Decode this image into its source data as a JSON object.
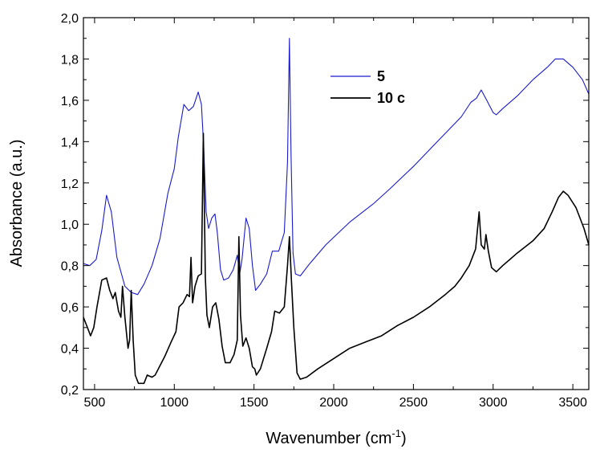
{
  "chart_data": {
    "type": "line",
    "title": "",
    "xlabel": "Wavenumber (cm",
    "xlabel_sup": "-1",
    "xlabel_close": ")",
    "ylabel": "Absorbance (a.u.)",
    "xlim": [
      430,
      3600
    ],
    "ylim": [
      0.2,
      2.0
    ],
    "x_ticks": [
      500,
      1000,
      1500,
      2000,
      2500,
      3000,
      3500
    ],
    "x_tick_labels": [
      "500",
      "1000",
      "1500",
      "2000",
      "2500",
      "3000",
      "3500"
    ],
    "y_ticks": [
      0.2,
      0.4,
      0.6,
      0.8,
      1.0,
      1.2,
      1.4,
      1.6,
      1.8,
      2.0
    ],
    "y_tick_labels": [
      "0,2",
      "0,4",
      "0,6",
      "0,8",
      "1,0",
      "1,2",
      "1,4",
      "1,6",
      "1,8",
      "2,0"
    ],
    "grid": false,
    "legend_position": "top-center",
    "series": [
      {
        "name": "5",
        "color": "#1a1acc",
        "points": [
          [
            430,
            0.81
          ],
          [
            470,
            0.8
          ],
          [
            510,
            0.83
          ],
          [
            545,
            0.97
          ],
          [
            575,
            1.14
          ],
          [
            605,
            1.06
          ],
          [
            640,
            0.84
          ],
          [
            690,
            0.7
          ],
          [
            730,
            0.67
          ],
          [
            770,
            0.66
          ],
          [
            810,
            0.71
          ],
          [
            860,
            0.8
          ],
          [
            910,
            0.93
          ],
          [
            960,
            1.15
          ],
          [
            1000,
            1.27
          ],
          [
            1025,
            1.42
          ],
          [
            1060,
            1.58
          ],
          [
            1090,
            1.55
          ],
          [
            1120,
            1.57
          ],
          [
            1150,
            1.64
          ],
          [
            1170,
            1.58
          ],
          [
            1185,
            1.37
          ],
          [
            1200,
            1.06
          ],
          [
            1215,
            0.98
          ],
          [
            1235,
            1.03
          ],
          [
            1255,
            1.05
          ],
          [
            1270,
            0.96
          ],
          [
            1290,
            0.78
          ],
          [
            1310,
            0.73
          ],
          [
            1340,
            0.74
          ],
          [
            1370,
            0.78
          ],
          [
            1395,
            0.85
          ],
          [
            1410,
            0.76
          ],
          [
            1425,
            0.83
          ],
          [
            1450,
            1.03
          ],
          [
            1470,
            0.98
          ],
          [
            1490,
            0.8
          ],
          [
            1510,
            0.68
          ],
          [
            1540,
            0.71
          ],
          [
            1580,
            0.76
          ],
          [
            1615,
            0.87
          ],
          [
            1655,
            0.87
          ],
          [
            1690,
            0.96
          ],
          [
            1710,
            1.3
          ],
          [
            1722,
            1.9
          ],
          [
            1732,
            1.34
          ],
          [
            1745,
            0.86
          ],
          [
            1760,
            0.76
          ],
          [
            1790,
            0.75
          ],
          [
            1850,
            0.81
          ],
          [
            1950,
            0.9
          ],
          [
            2100,
            1.01
          ],
          [
            2250,
            1.1
          ],
          [
            2350,
            1.17
          ],
          [
            2500,
            1.28
          ],
          [
            2650,
            1.4
          ],
          [
            2800,
            1.52
          ],
          [
            2860,
            1.59
          ],
          [
            2895,
            1.61
          ],
          [
            2925,
            1.65
          ],
          [
            2960,
            1.6
          ],
          [
            3000,
            1.54
          ],
          [
            3020,
            1.53
          ],
          [
            3060,
            1.56
          ],
          [
            3150,
            1.62
          ],
          [
            3250,
            1.7
          ],
          [
            3340,
            1.76
          ],
          [
            3390,
            1.8
          ],
          [
            3440,
            1.8
          ],
          [
            3500,
            1.76
          ],
          [
            3560,
            1.7
          ],
          [
            3600,
            1.63
          ]
        ]
      },
      {
        "name": "10 c",
        "color": "#000000",
        "points": [
          [
            430,
            0.55
          ],
          [
            455,
            0.5
          ],
          [
            475,
            0.46
          ],
          [
            495,
            0.5
          ],
          [
            515,
            0.6
          ],
          [
            545,
            0.73
          ],
          [
            575,
            0.74
          ],
          [
            595,
            0.68
          ],
          [
            615,
            0.64
          ],
          [
            630,
            0.67
          ],
          [
            650,
            0.58
          ],
          [
            665,
            0.55
          ],
          [
            675,
            0.7
          ],
          [
            690,
            0.55
          ],
          [
            710,
            0.4
          ],
          [
            720,
            0.44
          ],
          [
            730,
            0.68
          ],
          [
            742,
            0.44
          ],
          [
            755,
            0.27
          ],
          [
            775,
            0.23
          ],
          [
            810,
            0.23
          ],
          [
            830,
            0.27
          ],
          [
            860,
            0.26
          ],
          [
            880,
            0.27
          ],
          [
            900,
            0.3
          ],
          [
            940,
            0.36
          ],
          [
            980,
            0.43
          ],
          [
            1010,
            0.48
          ],
          [
            1030,
            0.6
          ],
          [
            1055,
            0.62
          ],
          [
            1080,
            0.66
          ],
          [
            1095,
            0.65
          ],
          [
            1105,
            0.84
          ],
          [
            1115,
            0.62
          ],
          [
            1130,
            0.7
          ],
          [
            1150,
            0.75
          ],
          [
            1170,
            0.76
          ],
          [
            1182,
            1.44
          ],
          [
            1195,
            0.74
          ],
          [
            1205,
            0.56
          ],
          [
            1220,
            0.5
          ],
          [
            1240,
            0.6
          ],
          [
            1260,
            0.62
          ],
          [
            1280,
            0.54
          ],
          [
            1300,
            0.41
          ],
          [
            1320,
            0.33
          ],
          [
            1350,
            0.33
          ],
          [
            1375,
            0.37
          ],
          [
            1395,
            0.44
          ],
          [
            1405,
            0.94
          ],
          [
            1415,
            0.56
          ],
          [
            1430,
            0.41
          ],
          [
            1450,
            0.45
          ],
          [
            1470,
            0.4
          ],
          [
            1490,
            0.31
          ],
          [
            1505,
            0.3
          ],
          [
            1515,
            0.27
          ],
          [
            1540,
            0.3
          ],
          [
            1580,
            0.4
          ],
          [
            1610,
            0.48
          ],
          [
            1630,
            0.58
          ],
          [
            1660,
            0.57
          ],
          [
            1690,
            0.6
          ],
          [
            1710,
            0.8
          ],
          [
            1722,
            0.94
          ],
          [
            1735,
            0.72
          ],
          [
            1750,
            0.5
          ],
          [
            1770,
            0.28
          ],
          [
            1790,
            0.25
          ],
          [
            1830,
            0.26
          ],
          [
            1900,
            0.3
          ],
          [
            2000,
            0.35
          ],
          [
            2100,
            0.4
          ],
          [
            2200,
            0.43
          ],
          [
            2300,
            0.46
          ],
          [
            2400,
            0.51
          ],
          [
            2500,
            0.55
          ],
          [
            2600,
            0.6
          ],
          [
            2700,
            0.66
          ],
          [
            2760,
            0.7
          ],
          [
            2800,
            0.74
          ],
          [
            2850,
            0.8
          ],
          [
            2890,
            0.88
          ],
          [
            2912,
            1.06
          ],
          [
            2925,
            0.9
          ],
          [
            2945,
            0.88
          ],
          [
            2955,
            0.95
          ],
          [
            2970,
            0.87
          ],
          [
            2990,
            0.79
          ],
          [
            3020,
            0.77
          ],
          [
            3060,
            0.8
          ],
          [
            3150,
            0.86
          ],
          [
            3250,
            0.92
          ],
          [
            3320,
            0.98
          ],
          [
            3370,
            1.06
          ],
          [
            3410,
            1.13
          ],
          [
            3440,
            1.16
          ],
          [
            3470,
            1.14
          ],
          [
            3520,
            1.08
          ],
          [
            3570,
            0.98
          ],
          [
            3600,
            0.9
          ]
        ]
      }
    ]
  }
}
